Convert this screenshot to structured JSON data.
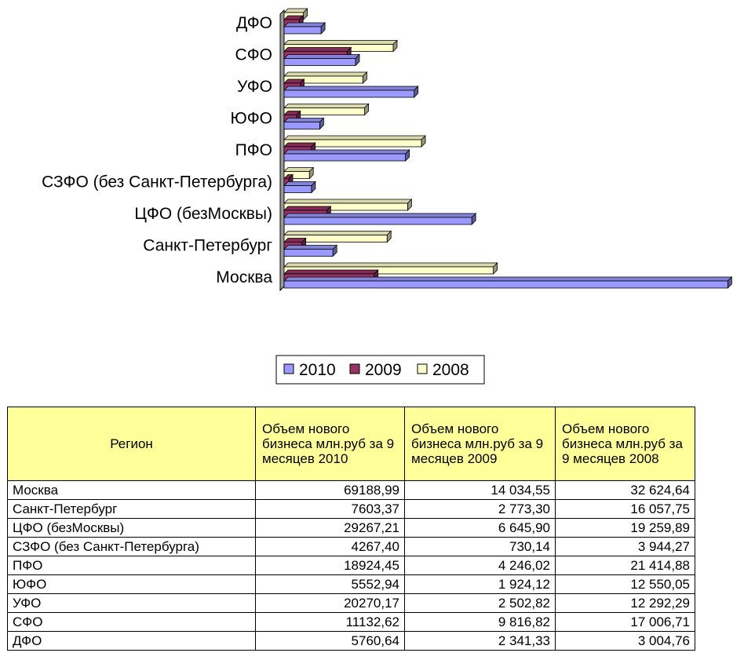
{
  "chart_data": {
    "type": "bar",
    "orientation": "horizontal",
    "categories": [
      "Москва",
      "Санкт-Петербург",
      "ЦФО (безМосквы)",
      "СЗФО (без Санкт-Петербурга)",
      "ПФО",
      "ЮФО",
      "УФО",
      "СФО",
      "ДФО"
    ],
    "series": [
      {
        "name": "2010",
        "color": "#9999ff",
        "values": [
          69188.99,
          7603.37,
          29267.21,
          4267.4,
          18924.45,
          5552.94,
          20270.17,
          11132.62,
          5760.64
        ]
      },
      {
        "name": "2009",
        "color": "#993366",
        "values": [
          14034.55,
          2773.3,
          6645.9,
          730.14,
          4246.02,
          1924.12,
          2502.82,
          9816.82,
          2341.33
        ]
      },
      {
        "name": "2008",
        "color": "#ffffcc",
        "values": [
          32624.64,
          16057.75,
          19259.89,
          3944.27,
          21414.88,
          12550.05,
          12292.29,
          17006.71,
          3004.76
        ]
      }
    ],
    "xlim": [
      0,
      70000
    ],
    "grid": false,
    "legend_position": "bottom"
  },
  "table": {
    "headers": [
      "Регион",
      "Объем нового бизнеса млн.руб за 9 месяцев 2010",
      "Объем нового бизнеса млн.руб за 9 месяцев 2009",
      "Объем нового бизнеса млн.руб за 9 месяцев 2008"
    ],
    "rows": [
      [
        "Москва",
        "69188,99",
        "14 034,55",
        "32 624,64"
      ],
      [
        "Санкт-Петербург",
        "7603,37",
        "2 773,30",
        "16 057,75"
      ],
      [
        "ЦФО (безМосквы)",
        "29267,21",
        "6 645,90",
        "19 259,89"
      ],
      [
        "СЗФО (без Санкт-Петербурга)",
        "4267,40",
        "730,14",
        "3 944,27"
      ],
      [
        "ПФО",
        "18924,45",
        "4 246,02",
        "21 414,88"
      ],
      [
        "ЮФО",
        "5552,94",
        "1 924,12",
        "12 550,05"
      ],
      [
        "УФО",
        "20270,17",
        "2 502,82",
        "12 292,29"
      ],
      [
        "СФО",
        "11132,62",
        "9 816,82",
        "17 006,71"
      ],
      [
        "ДФО",
        "5760,64",
        "2 341,33",
        "3 004,76"
      ]
    ]
  }
}
